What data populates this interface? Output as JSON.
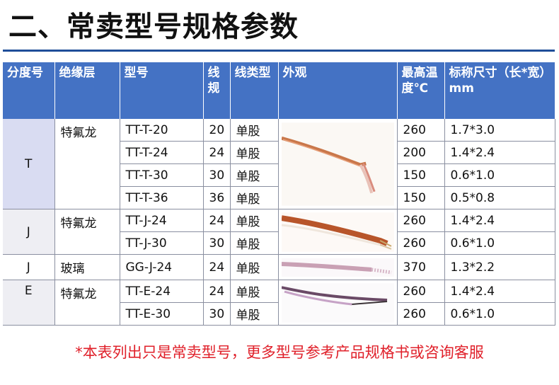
{
  "page": {
    "title": "二、常卖型号规格参数"
  },
  "table": {
    "headers": [
      "分度号",
      "绝缘层",
      "型号",
      "线规",
      "线类型",
      "外观",
      "最高温度℃",
      "标称尺寸（长*宽）mm"
    ],
    "rows": [
      {
        "division": "T",
        "insulation": "特氟龙",
        "model": "TT-T-20",
        "gauge": "20",
        "wire_type": "单股",
        "max_temp": "260",
        "size": "1.7*3.0"
      },
      {
        "model": "TT-T-24",
        "gauge": "24",
        "wire_type": "单股",
        "max_temp": "200",
        "size": "1.4*2.4"
      },
      {
        "model": "TT-T-30",
        "gauge": "30",
        "wire_type": "单股",
        "max_temp": "150",
        "size": "0.6*1.0"
      },
      {
        "model": "TT-T-36",
        "gauge": "36",
        "wire_type": "单股",
        "max_temp": "150",
        "size": "0.5*0.8"
      },
      {
        "division": "J",
        "insulation": "特氟龙",
        "model": "TT-J-24",
        "gauge": "24",
        "wire_type": "单股",
        "max_temp": "260",
        "size": "1.4*2.4"
      },
      {
        "model": "TT-J-30",
        "gauge": "30",
        "wire_type": "单股",
        "max_temp": "260",
        "size": "0.6*1.0"
      },
      {
        "division": "J",
        "insulation": "玻璃",
        "model": "GG-J-24",
        "gauge": "24",
        "wire_type": "单股",
        "max_temp": "370",
        "size": "1.3*2.2"
      },
      {
        "division": "E",
        "insulation": "特氟龙",
        "model": "TT-E-24",
        "gauge": "24",
        "wire_type": "单股",
        "max_temp": "260",
        "size": "1.4*2.4"
      },
      {
        "model": "TT-E-30",
        "gauge": "30",
        "wire_type": "单股",
        "max_temp": "260",
        "size": "0.6*1.0"
      }
    ]
  },
  "footnote": "*本表列出只是常卖型号，更多型号参考产品规格书或咨询客服"
}
